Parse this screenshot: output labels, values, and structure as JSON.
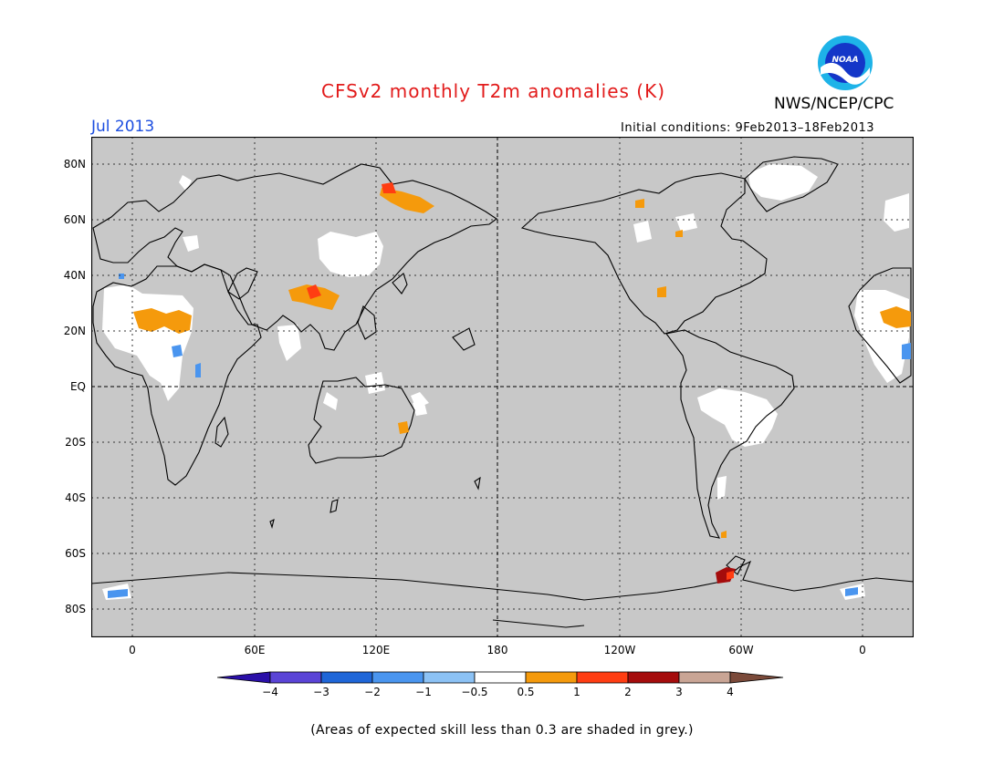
{
  "title": "CFSv2 monthly T2m anomalies (K)",
  "agency": "NWS/NCEP/CPC",
  "logo_text": "NOAA",
  "period": "Jul 2013",
  "initial_conditions": "Initial conditions: 9Feb2013–18Feb2013",
  "lat_labels": [
    "80N",
    "60N",
    "40N",
    "20N",
    "EQ",
    "20S",
    "40S",
    "60S",
    "80S"
  ],
  "lon_labels": [
    "0",
    "60E",
    "120E",
    "180",
    "120W",
    "60W",
    "0"
  ],
  "colorbar": {
    "labels": [
      "−4",
      "−3",
      "−2",
      "−1",
      "−0.5",
      "0.5",
      "1",
      "2",
      "3",
      "4"
    ],
    "colors": [
      "#2a0fa8",
      "#5a44d6",
      "#1f66d8",
      "#4a95ef",
      "#8cc2f5",
      "#ffffff",
      "#f59a0c",
      "#ff3d12",
      "#a50c0c",
      "#c9a595",
      "#7b4a3a"
    ]
  },
  "note": "(Areas of expected skill less than 0.3 are shaded in grey.)",
  "colors": {
    "grey_skill": "#c8c8c8",
    "title": "#e21b1b",
    "period": "#1c4ee0"
  }
}
